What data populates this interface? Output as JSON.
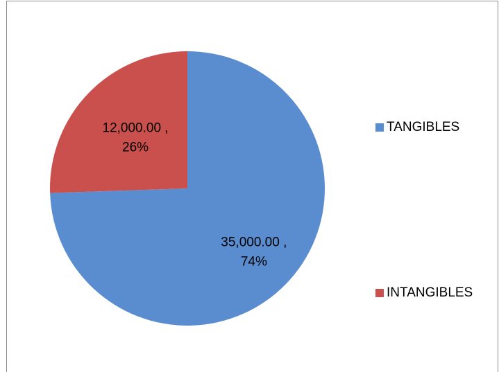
{
  "chart_data": {
    "type": "pie",
    "categories": [
      "TANGIBLES",
      "INTANGIBLES"
    ],
    "values": [
      35000,
      12000
    ],
    "value_labels": [
      "35,000.00 ,",
      "12,000.00 ,"
    ],
    "percent_labels": [
      "74%",
      "26%"
    ],
    "colors": [
      "#5a8dcf",
      "#c9504c"
    ],
    "legend": "right"
  }
}
